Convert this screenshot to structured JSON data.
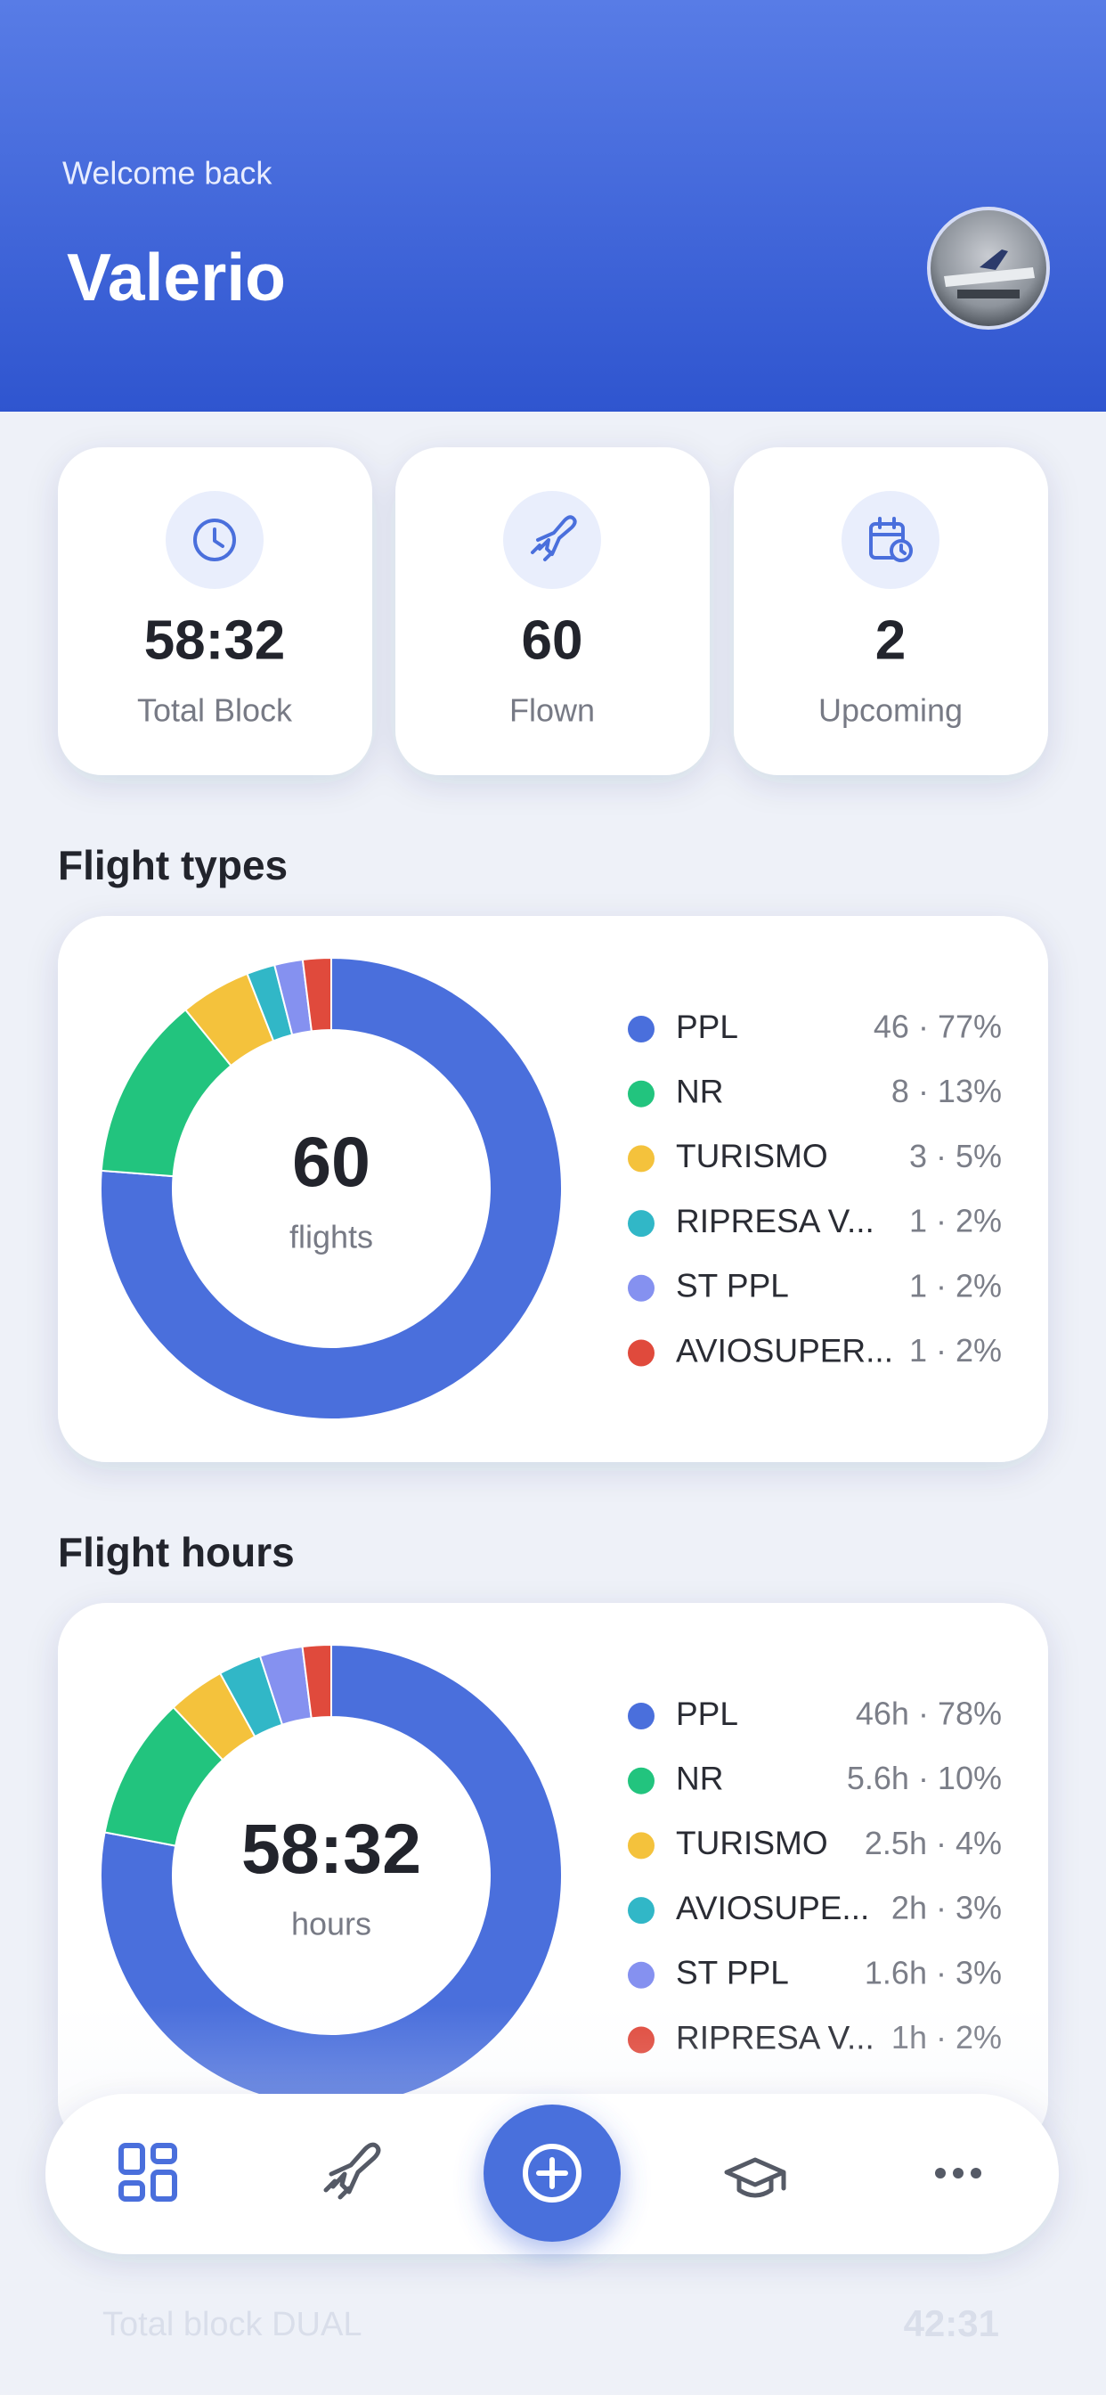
{
  "header": {
    "greeting": "Welcome back",
    "name": "Valerio"
  },
  "stats": [
    {
      "value": "58:32",
      "label": "Total Block"
    },
    {
      "value": "60",
      "label": "Flown"
    },
    {
      "value": "2",
      "label": "Upcoming"
    }
  ],
  "chart_data": [
    {
      "type": "donut",
      "title": "Flight types",
      "center_value": "60",
      "center_label": "flights",
      "categories": [
        "PPL",
        "NR",
        "TURISMO",
        "RIPRESA V...",
        "ST PPL",
        "AVIOSUPER..."
      ],
      "values": [
        77,
        13,
        5,
        2,
        2,
        2
      ],
      "value_labels": [
        "46 · 77%",
        "8 · 13%",
        "3 · 5%",
        "1 · 2%",
        "1 · 2%",
        "1 · 2%"
      ],
      "colors": [
        "#4a6fdc",
        "#22c47e",
        "#f4c23c",
        "#31b7c7",
        "#8591f0",
        "#e04a3c"
      ]
    },
    {
      "type": "donut",
      "title": "Flight hours",
      "center_value": "58:32",
      "center_label": "hours",
      "categories": [
        "PPL",
        "NR",
        "TURISMO",
        "AVIOSUPE...",
        "ST PPL",
        "RIPRESA V..."
      ],
      "values": [
        78,
        10,
        4,
        3,
        3,
        2
      ],
      "value_labels": [
        "46h · 78%",
        "5.6h · 10%",
        "2.5h · 4%",
        "2h · 3%",
        "1.6h · 3%",
        "1h · 2%"
      ],
      "colors": [
        "#4a6fdc",
        "#22c47e",
        "#f4c23c",
        "#31b7c7",
        "#8591f0",
        "#e04a3c"
      ]
    }
  ],
  "footer": {
    "label": "Total block DUAL",
    "value": "42:31"
  }
}
